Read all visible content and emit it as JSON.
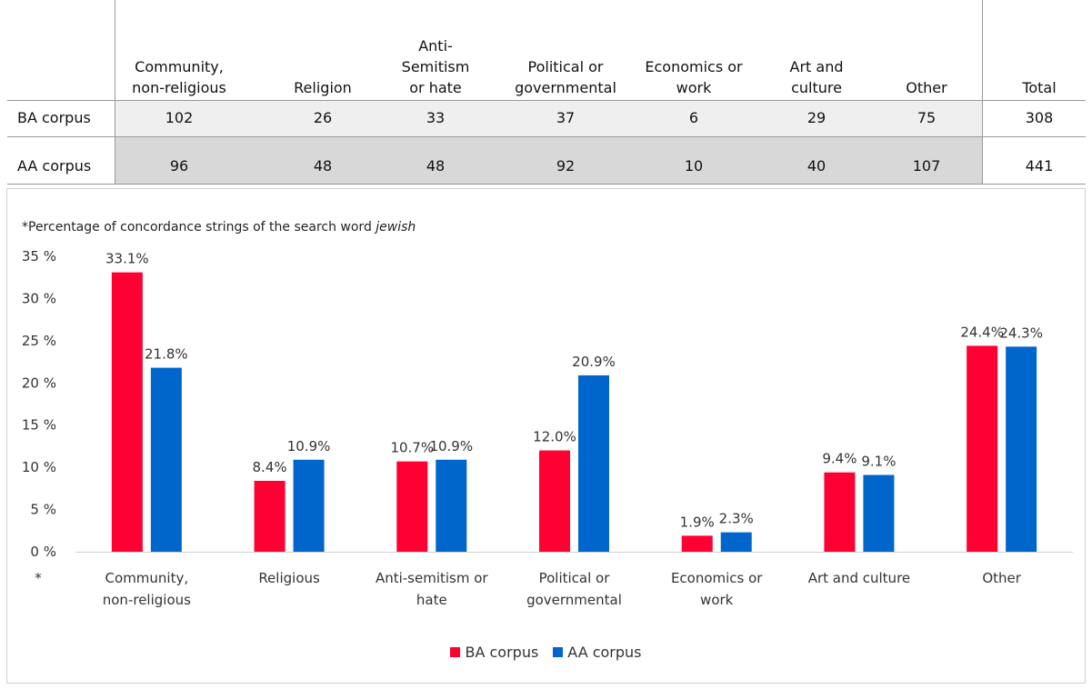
{
  "table": {
    "columns": [
      [
        "Community,",
        "non-religious"
      ],
      [
        "Religion"
      ],
      [
        "Anti-",
        "Semitism",
        "or hate"
      ],
      [
        "Political or",
        "governmental"
      ],
      [
        "Economics or",
        "work"
      ],
      [
        "Art and",
        "culture"
      ],
      [
        "Other"
      ],
      [
        "Total"
      ]
    ],
    "rows": [
      {
        "label": "BA corpus",
        "values": [
          "102",
          "26",
          "33",
          "37",
          "6",
          "29",
          "75",
          "308"
        ]
      },
      {
        "label": "AA corpus",
        "values": [
          "96",
          "48",
          "48",
          "92",
          "10",
          "40",
          "107",
          "441"
        ]
      }
    ]
  },
  "chart_data": {
    "type": "bar",
    "note_prefix": "*Percentage of concordance strings of the search word ",
    "note_word": "jewish",
    "star": "*",
    "categories": [
      [
        "Community,",
        "non-religious"
      ],
      [
        "Religious"
      ],
      [
        "Anti-semitism or",
        "hate"
      ],
      [
        "Political or",
        "governmental"
      ],
      [
        "Economics or",
        "work"
      ],
      [
        "Art and culture"
      ],
      [
        "Other"
      ]
    ],
    "series": [
      {
        "name": "BA corpus",
        "color": "#ff0033",
        "values": [
          33.1,
          8.4,
          10.7,
          12.0,
          1.9,
          9.4,
          24.4
        ],
        "labels": [
          "33.1%",
          "8.4%",
          "10.7%",
          "12.0%",
          "1.9%",
          "9.4%",
          "24.4%"
        ]
      },
      {
        "name": "AA corpus",
        "color": "#0066cc",
        "values": [
          21.8,
          10.9,
          10.9,
          20.9,
          2.3,
          9.1,
          24.3
        ],
        "labels": [
          "21.8%",
          "10.9%",
          "10.9%",
          "20.9%",
          "2.3%",
          "9.1%",
          "24.3%"
        ]
      }
    ],
    "ylim": [
      0,
      35
    ],
    "yticks": [
      0,
      5,
      10,
      15,
      20,
      25,
      30,
      35
    ],
    "ytick_labels": [
      "0 %",
      "5 %",
      "10 %",
      "15 %",
      "20 %",
      "25 %",
      "30 %",
      "35 %"
    ],
    "legend_position": "bottom",
    "grid": false
  }
}
